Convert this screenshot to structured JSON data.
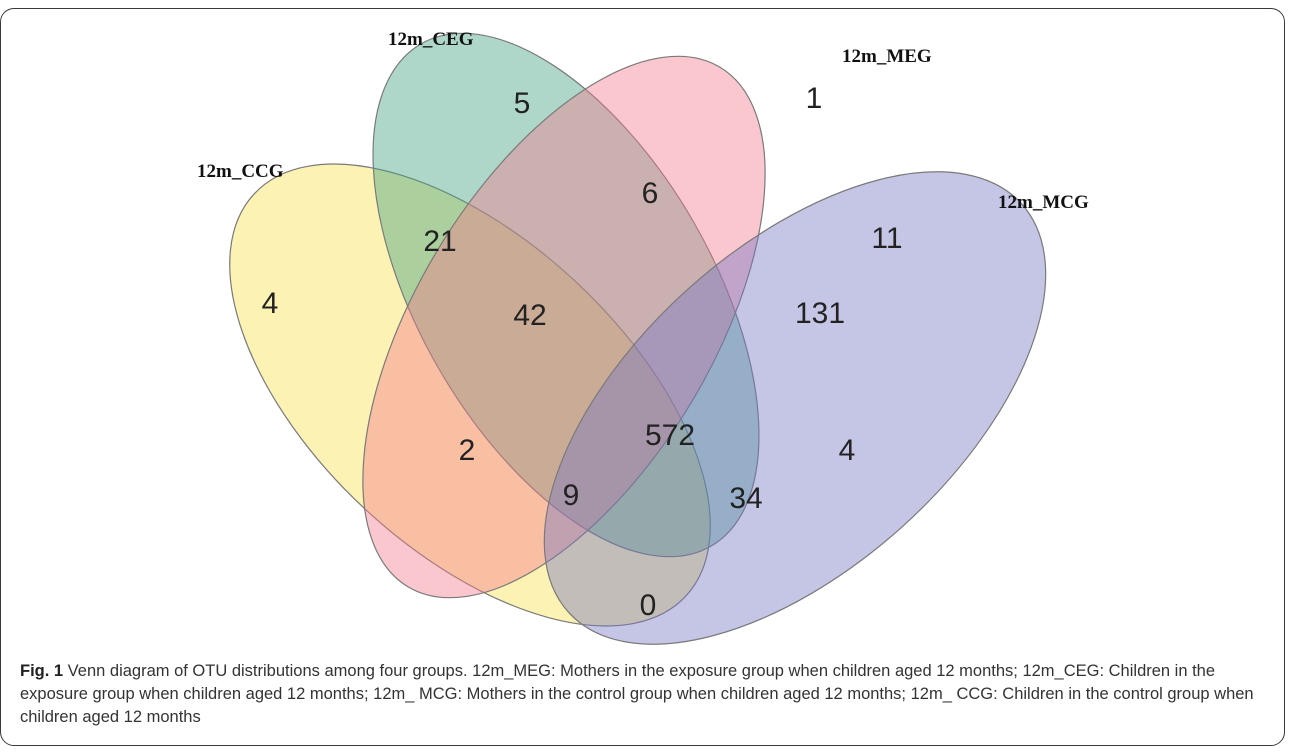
{
  "sets": [
    {
      "id": "12m_CCG",
      "label": "12m_CCG",
      "color": "#f5e14a"
    },
    {
      "id": "12m_CEG",
      "label": "12m_CEG",
      "color": "#3f9f80"
    },
    {
      "id": "12m_MEG",
      "label": "12m_MEG",
      "color": "#f27a8c"
    },
    {
      "id": "12m_MCG",
      "label": "12m_MCG",
      "color": "#7574c4"
    }
  ],
  "regions": {
    "only_ccg": "4",
    "only_ceg": "5",
    "only_meg": "1",
    "only_mcg": "4",
    "ccg_ceg": "21",
    "ceg_meg": "6",
    "meg_mcg": "11",
    "ccg_ceg_meg": "42",
    "ceg_meg_mcg": "131",
    "ccg_meg": "2",
    "all_four": "572",
    "ccg_meg_mcg": "9",
    "ccg_ceg_mcg": "34",
    "ccg_mcg": "0"
  },
  "caption": {
    "label": "Fig. 1",
    "text": " Venn diagram of OTU distributions among four groups. 12m_MEG: Mothers in the exposure group when children aged 12 months; 12m_CEG: Children in the exposure group when children aged 12 months; 12m_ MCG: Mothers in the control group when children aged 12 months; 12m_ CCG: Children in the control group when children aged 12 months"
  }
}
